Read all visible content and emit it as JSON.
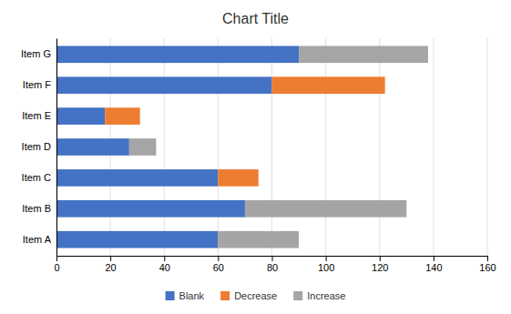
{
  "chart_data": {
    "type": "bar",
    "orientation": "horizontal",
    "stacked": true,
    "title": "Chart Title",
    "categories": [
      "Item A",
      "Item B",
      "Item C",
      "Item D",
      "Item E",
      "Item F",
      "Item G"
    ],
    "series": [
      {
        "name": "Blank",
        "color": "#4472c4",
        "values": [
          60,
          70,
          60,
          27,
          18,
          80,
          90
        ]
      },
      {
        "name": "Decrease",
        "color": "#ed7d31",
        "values": [
          0,
          0,
          15,
          0,
          13,
          42,
          0
        ]
      },
      {
        "name": "Increase",
        "color": "#a5a5a5",
        "values": [
          30,
          60,
          0,
          10,
          0,
          0,
          48
        ]
      }
    ],
    "xlim": [
      0,
      160
    ],
    "xticks": [
      0,
      20,
      40,
      60,
      80,
      100,
      120,
      140,
      160
    ],
    "grid": true,
    "legend": "bottom"
  }
}
